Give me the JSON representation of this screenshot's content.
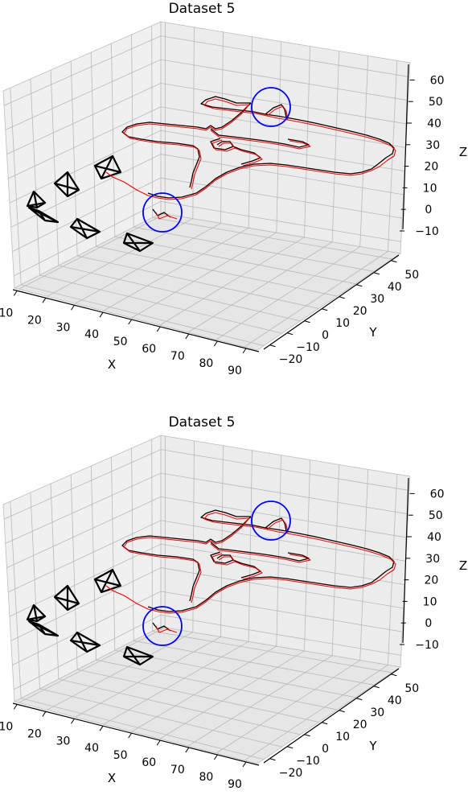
{
  "chart_data": [
    {
      "type": "line",
      "projection": "3d",
      "title": "Dataset 5",
      "xlabel": "X",
      "ylabel": "Y",
      "zlabel": "Z",
      "x_ticks": [
        "10",
        "20",
        "30",
        "40",
        "50",
        "60",
        "70",
        "80",
        "90"
      ],
      "y_ticks": [
        "−20",
        "−10",
        "0",
        "10",
        "20",
        "30",
        "40",
        "50"
      ],
      "z_ticks": [
        "−10",
        "0",
        "10",
        "20",
        "30",
        "40",
        "50",
        "60"
      ],
      "xlim": [
        10,
        90
      ],
      "ylim": [
        -20,
        50
      ],
      "zlim": [
        -15,
        60
      ],
      "grid": true,
      "series_colors": [
        "#000000",
        "#ff0000"
      ],
      "highlight_color": "#0000ff",
      "highlight_count": 2,
      "camera_marker_count": 6
    },
    {
      "type": "line",
      "projection": "3d",
      "title": "Dataset 5",
      "xlabel": "X",
      "ylabel": "Y",
      "zlabel": "Z",
      "x_ticks": [
        "10",
        "20",
        "30",
        "40",
        "50",
        "60",
        "70",
        "80",
        "90"
      ],
      "y_ticks": [
        "−20",
        "−10",
        "0",
        "10",
        "20",
        "30",
        "40",
        "50"
      ],
      "z_ticks": [
        "−10",
        "0",
        "10",
        "20",
        "30",
        "40",
        "50",
        "60"
      ],
      "xlim": [
        10,
        90
      ],
      "ylim": [
        -20,
        50
      ],
      "zlim": [
        -15,
        60
      ],
      "grid": true,
      "series_colors": [
        "#000000",
        "#ff0000"
      ],
      "highlight_color": "#0000ff",
      "highlight_count": 2,
      "camera_marker_count": 6
    }
  ]
}
